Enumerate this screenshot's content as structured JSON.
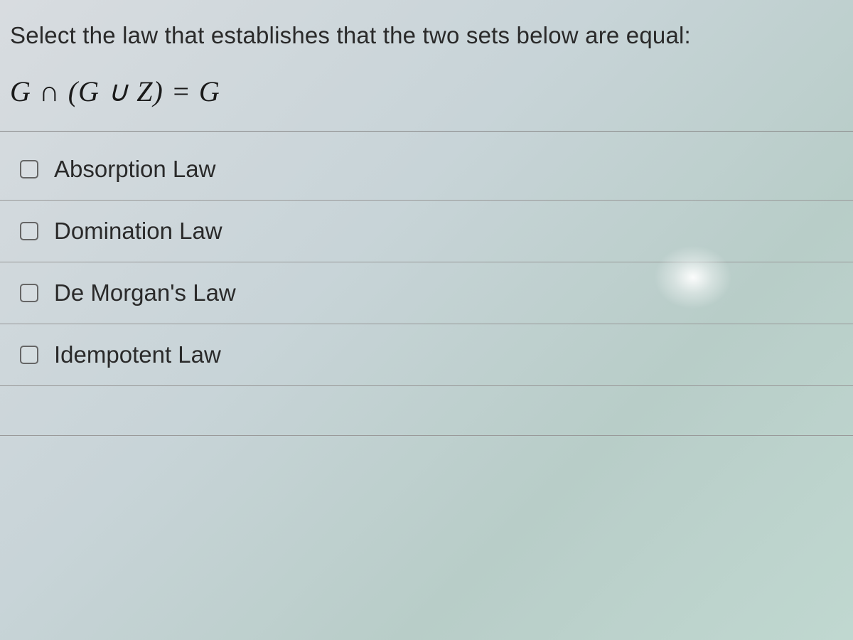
{
  "question": {
    "prompt": "Select the law that establishes that the two sets below are equal:",
    "equation": "G ∩ (G ∪ Z) = G"
  },
  "options": [
    {
      "label": "Absorption Law",
      "checked": false
    },
    {
      "label": "Domination Law",
      "checked": false
    },
    {
      "label": "De Morgan's Law",
      "checked": false
    },
    {
      "label": "Idempotent Law",
      "checked": false
    }
  ],
  "colors": {
    "text": "#2a2a2a",
    "border": "#999",
    "checkbox_border": "#666"
  }
}
